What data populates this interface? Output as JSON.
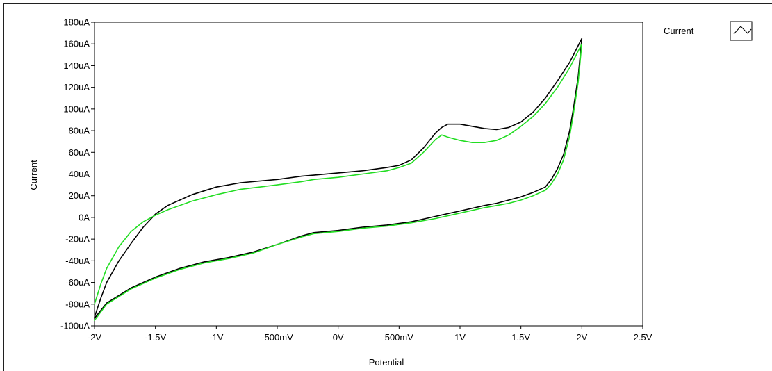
{
  "chart_data": {
    "type": "line",
    "title": "",
    "xlabel": "Potential",
    "ylabel": "Current",
    "xlim": [
      -2,
      2.5
    ],
    "ylim": [
      -100,
      180
    ],
    "x_unit": "V",
    "y_unit": "uA",
    "x_ticks": [
      {
        "value": -2,
        "label": "-2V"
      },
      {
        "value": -1.5,
        "label": "-1.5V"
      },
      {
        "value": -1,
        "label": "-1V"
      },
      {
        "value": -0.5,
        "label": "-500mV"
      },
      {
        "value": 0,
        "label": "0V"
      },
      {
        "value": 0.5,
        "label": "500mV"
      },
      {
        "value": 1,
        "label": "1V"
      },
      {
        "value": 1.5,
        "label": "1.5V"
      },
      {
        "value": 2,
        "label": "2V"
      },
      {
        "value": 2.5,
        "label": "2.5V"
      }
    ],
    "y_ticks": [
      {
        "value": 180,
        "label": "180uA"
      },
      {
        "value": 160,
        "label": "160uA"
      },
      {
        "value": 140,
        "label": "140uA"
      },
      {
        "value": 120,
        "label": "120uA"
      },
      {
        "value": 100,
        "label": "100uA"
      },
      {
        "value": 80,
        "label": "80uA"
      },
      {
        "value": 60,
        "label": "60uA"
      },
      {
        "value": 40,
        "label": "40uA"
      },
      {
        "value": 20,
        "label": "20uA"
      },
      {
        "value": 0,
        "label": "0A"
      },
      {
        "value": -20,
        "label": "-20uA"
      },
      {
        "value": -40,
        "label": "-40uA"
      },
      {
        "value": -60,
        "label": "-60uA"
      },
      {
        "value": -80,
        "label": "-80uA"
      },
      {
        "value": -100,
        "label": "-100uA"
      }
    ],
    "grid": false,
    "legend": {
      "position": "top-right",
      "entries": [
        "Current"
      ]
    },
    "series": [
      {
        "name": "Current",
        "color": "#000000",
        "x": [
          -2.0,
          -1.95,
          -1.9,
          -1.8,
          -1.7,
          -1.6,
          -1.5,
          -1.4,
          -1.2,
          -1.0,
          -0.8,
          -0.5,
          -0.3,
          -0.2,
          0.0,
          0.2,
          0.4,
          0.5,
          0.6,
          0.7,
          0.8,
          0.85,
          0.9,
          1.0,
          1.1,
          1.2,
          1.3,
          1.4,
          1.5,
          1.6,
          1.7,
          1.8,
          1.9,
          2.0,
          1.97,
          1.93,
          1.9,
          1.85,
          1.8,
          1.75,
          1.7,
          1.6,
          1.5,
          1.4,
          1.3,
          1.2,
          1.0,
          0.8,
          0.6,
          0.4,
          0.2,
          0.0,
          -0.2,
          -0.3,
          -0.5,
          -0.7,
          -0.9,
          -1.1,
          -1.3,
          -1.5,
          -1.7,
          -1.9,
          -2.0
        ],
        "y": [
          -92,
          -75,
          -60,
          -40,
          -24,
          -9,
          3,
          11,
          21,
          28,
          32,
          35,
          38,
          39,
          41,
          43,
          46,
          48,
          53,
          64,
          78,
          83,
          86,
          86,
          84,
          82,
          81,
          83,
          88,
          97,
          110,
          126,
          143,
          165,
          130,
          100,
          80,
          58,
          45,
          35,
          28,
          23,
          19,
          16,
          13,
          11,
          6,
          1,
          -4,
          -7,
          -9,
          -12,
          -14,
          -17,
          -25,
          -32,
          -37,
          -41,
          -47,
          -55,
          -65,
          -79,
          -93
        ]
      },
      {
        "name": "",
        "color": "#22dd22",
        "x": [
          -2.0,
          -1.95,
          -1.9,
          -1.8,
          -1.7,
          -1.6,
          -1.5,
          -1.4,
          -1.2,
          -1.0,
          -0.8,
          -0.5,
          -0.3,
          -0.2,
          0.0,
          0.2,
          0.4,
          0.5,
          0.6,
          0.7,
          0.8,
          0.85,
          0.9,
          1.0,
          1.1,
          1.2,
          1.3,
          1.4,
          1.5,
          1.6,
          1.7,
          1.8,
          1.9,
          2.0,
          1.97,
          1.93,
          1.9,
          1.85,
          1.8,
          1.75,
          1.7,
          1.6,
          1.5,
          1.4,
          1.3,
          1.2,
          1.0,
          0.8,
          0.6,
          0.4,
          0.2,
          0.0,
          -0.2,
          -0.3,
          -0.5,
          -0.7,
          -0.9,
          -1.1,
          -1.3,
          -1.5,
          -1.7,
          -1.9,
          -2.0
        ],
        "y": [
          -80,
          -62,
          -47,
          -27,
          -13,
          -4,
          2,
          7,
          15,
          21,
          26,
          30,
          33,
          35,
          37,
          40,
          43,
          46,
          50,
          60,
          72,
          76,
          74,
          71,
          69,
          69,
          71,
          76,
          84,
          93,
          105,
          120,
          138,
          160,
          125,
          95,
          75,
          53,
          40,
          31,
          25,
          20,
          16,
          13,
          11,
          9,
          4,
          -1,
          -5,
          -8,
          -10,
          -13,
          -15,
          -18,
          -25,
          -33,
          -38,
          -42,
          -48,
          -56,
          -66,
          -80,
          -95
        ]
      }
    ]
  }
}
